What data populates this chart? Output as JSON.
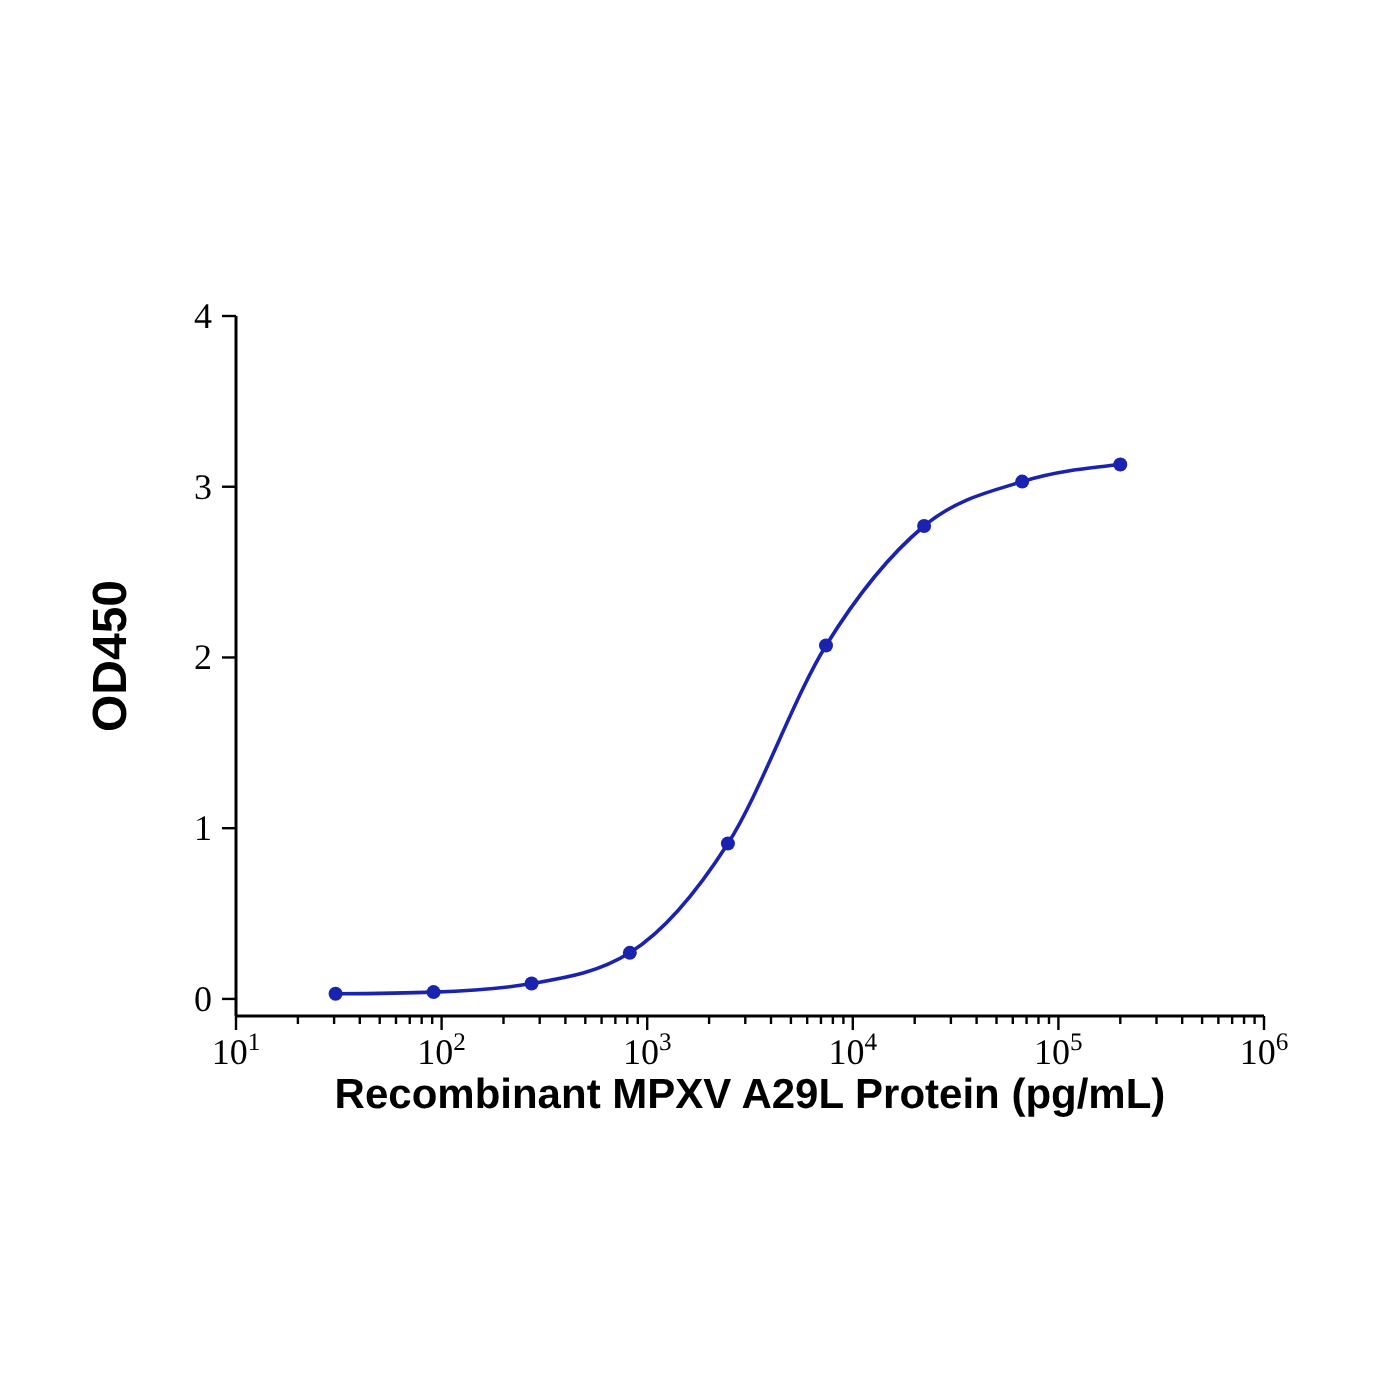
{
  "chart_data": {
    "type": "line",
    "xlabel": "Recombinant MPXV A29L Protein (pg/mL)",
    "ylabel": "OD450",
    "log": "x",
    "marker": "circle",
    "line_style": "solid",
    "grid": false,
    "legend": false,
    "x": [
      30.5,
      91.4,
      274,
      823,
      2469,
      7407,
      22222,
      66667,
      200000
    ],
    "series": [
      {
        "color": "#1a22b0",
        "values": [
          0.03,
          0.04,
          0.09,
          0.27,
          0.91,
          2.07,
          2.77,
          3.03,
          3.13
        ]
      }
    ],
    "xlim": [
      10,
      1000000
    ],
    "xticks": [
      {
        "value": 10,
        "label": "10$^{1}$"
      },
      {
        "value": 20,
        "label": null
      },
      {
        "value": 30,
        "label": null
      },
      {
        "value": 40,
        "label": null
      },
      {
        "value": 50,
        "label": null
      },
      {
        "value": 60,
        "label": null
      },
      {
        "value": 70,
        "label": null
      },
      {
        "value": 80,
        "label": null
      },
      {
        "value": 90,
        "label": null
      },
      {
        "value": 100,
        "label": "10$^{2}$"
      },
      {
        "value": 200,
        "label": null
      },
      {
        "value": 300,
        "label": null
      },
      {
        "value": 400,
        "label": null
      },
      {
        "value": 500,
        "label": null
      },
      {
        "value": 600,
        "label": null
      },
      {
        "value": 700,
        "label": null
      },
      {
        "value": 800,
        "label": null
      },
      {
        "value": 900,
        "label": null
      },
      {
        "value": 1000,
        "label": "10$^{3}$"
      },
      {
        "value": 2000,
        "label": null
      },
      {
        "value": 3000,
        "label": null
      },
      {
        "value": 4000,
        "label": null
      },
      {
        "value": 5000,
        "label": null
      },
      {
        "value": 6000,
        "label": null
      },
      {
        "value": 7000,
        "label": null
      },
      {
        "value": 8000,
        "label": null
      },
      {
        "value": 9000,
        "label": null
      },
      {
        "value": 10000,
        "label": "10$^{4}$"
      },
      {
        "value": 20000,
        "label": null
      },
      {
        "value": 30000,
        "label": null
      },
      {
        "value": 40000,
        "label": null
      },
      {
        "value": 50000,
        "label": null
      },
      {
        "value": 60000,
        "label": null
      },
      {
        "value": 70000,
        "label": null
      },
      {
        "value": 80000,
        "label": null
      },
      {
        "value": 90000,
        "label": null
      },
      {
        "value": 100000,
        "label": "10$^{5}$"
      },
      {
        "value": 200000,
        "label": null
      },
      {
        "value": 300000,
        "label": null
      },
      {
        "value": 400000,
        "label": null
      },
      {
        "value": 500000,
        "label": null
      },
      {
        "value": 600000,
        "label": null
      },
      {
        "value": 700000,
        "label": null
      },
      {
        "value": 800000,
        "label": null
      },
      {
        "value": 900000,
        "label": null
      },
      {
        "value": 1000000,
        "label": "10$^{6}$"
      }
    ],
    "ylim": [
      -0.1,
      4
    ],
    "yticks": [
      0,
      1,
      2,
      3,
      4
    ]
  }
}
